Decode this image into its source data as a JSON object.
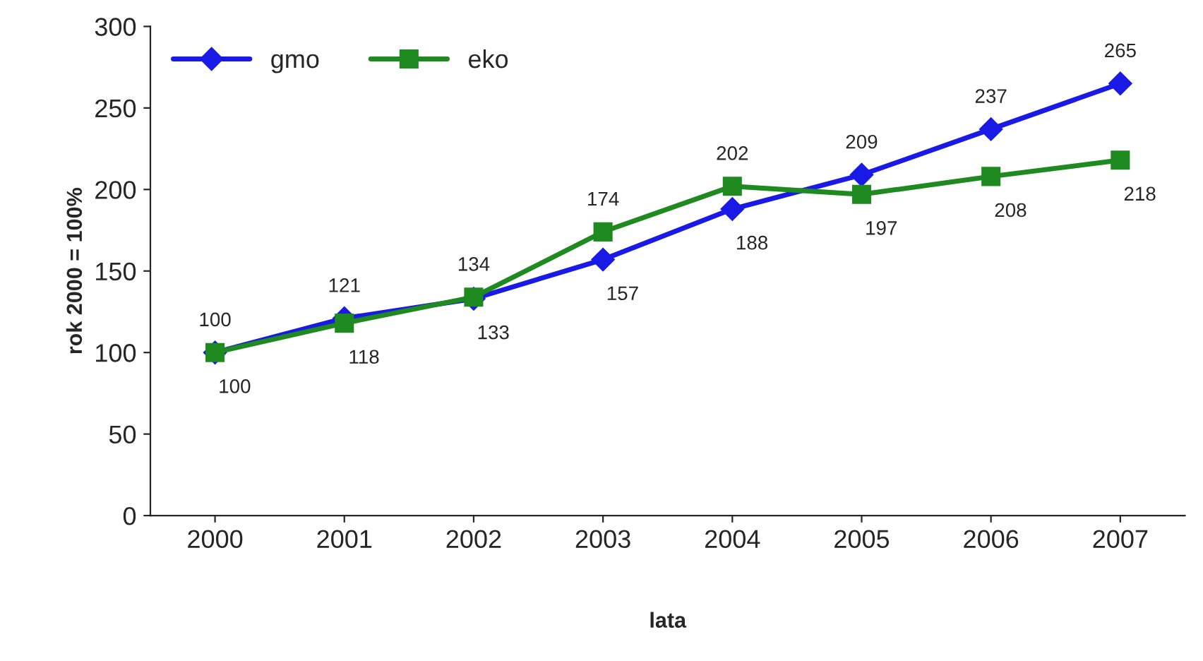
{
  "chart_data": {
    "type": "line",
    "xlabel": "lata",
    "ylabel": "rok 2000 = 100%",
    "categories": [
      "2000",
      "2001",
      "2002",
      "2003",
      "2004",
      "2005",
      "2006",
      "2007"
    ],
    "series": [
      {
        "name": "gmo",
        "color": "#1a1ae6",
        "marker": "diamond",
        "values": [
          100,
          121,
          133,
          157,
          188,
          209,
          237,
          265
        ]
      },
      {
        "name": "eko",
        "color": "#1f8a1f",
        "marker": "square",
        "values": [
          100,
          118,
          134,
          174,
          202,
          197,
          208,
          218
        ]
      }
    ],
    "ylim": [
      0,
      300
    ],
    "yticks": [
      0,
      50,
      100,
      150,
      200,
      250,
      300
    ],
    "grid": false,
    "legend": "top left",
    "data_labels": true
  }
}
